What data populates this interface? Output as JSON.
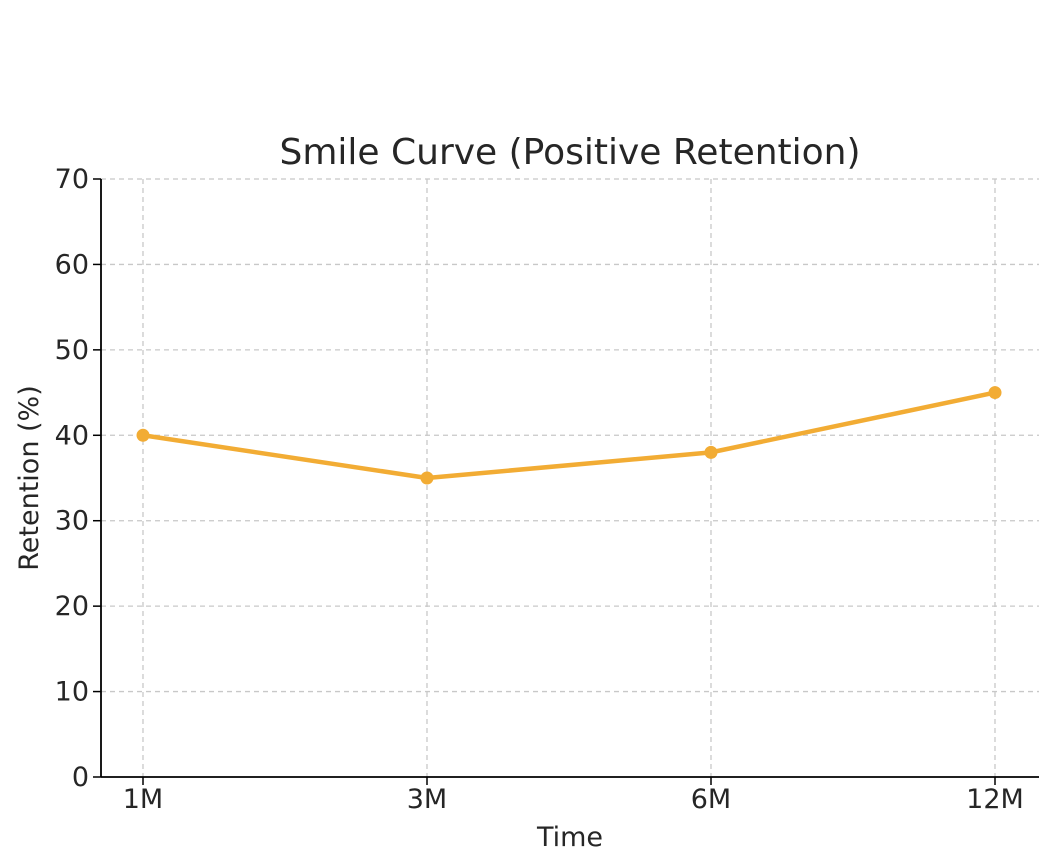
{
  "chart_data": {
    "type": "line",
    "title": "Smile Curve (Positive Retention)",
    "xlabel": "Time",
    "ylabel": "Retention (%)",
    "categories": [
      "1M",
      "3M",
      "6M",
      "12M"
    ],
    "series": [
      {
        "values": [
          40,
          35,
          38,
          45
        ],
        "color": "#f2ac34",
        "marker": "circle"
      }
    ],
    "ylim": [
      0,
      70
    ],
    "yticks": [
      0,
      10,
      20,
      30,
      40,
      50,
      60,
      70
    ],
    "grid": true,
    "grid_style": "dashed",
    "legend": false
  }
}
